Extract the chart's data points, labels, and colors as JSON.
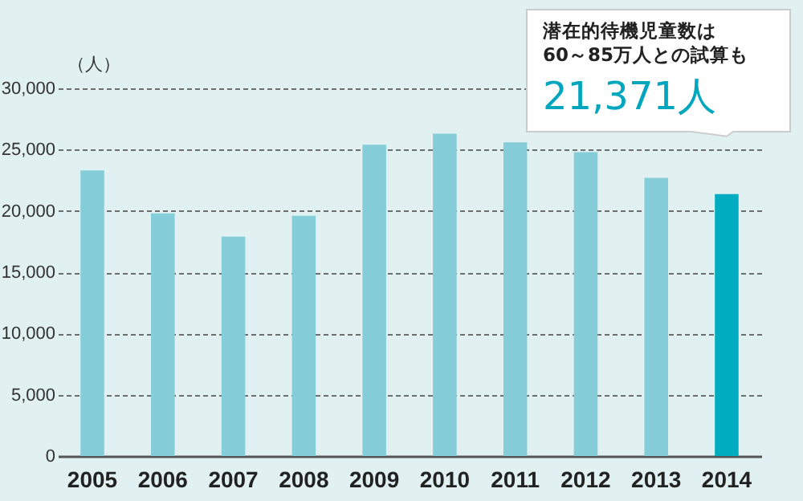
{
  "chart_data": {
    "type": "bar",
    "ylabel": "（人）",
    "categories": [
      "2005",
      "2006",
      "2007",
      "2008",
      "2009",
      "2010",
      "2011",
      "2012",
      "2013",
      "2014"
    ],
    "values": [
      23300,
      19800,
      17900,
      19600,
      25400,
      26300,
      25600,
      24800,
      22700,
      21371
    ],
    "colors": [
      "#84cdd9",
      "#84cdd9",
      "#84cdd9",
      "#84cdd9",
      "#84cdd9",
      "#84cdd9",
      "#84cdd9",
      "#84cdd9",
      "#84cdd9",
      "#00acbf"
    ],
    "annotations": [
      "潜在的待機児童数は\n60～85万人との試算も",
      {
        "text": "21,371人",
        "x": "2014",
        "y": 21371
      }
    ],
    "ylim": [
      0,
      30000
    ],
    "yticks": [
      0,
      {
        "value": 5000,
        "label": "5,000"
      },
      {
        "value": 10000,
        "label": "10,000"
      },
      {
        "value": 15000,
        "label": "15,000"
      },
      {
        "value": 20000,
        "label": "20,000"
      },
      {
        "value": 25000,
        "label": "25,000"
      },
      {
        "value": 30000,
        "label": "30,000"
      }
    ],
    "grid": "y"
  }
}
